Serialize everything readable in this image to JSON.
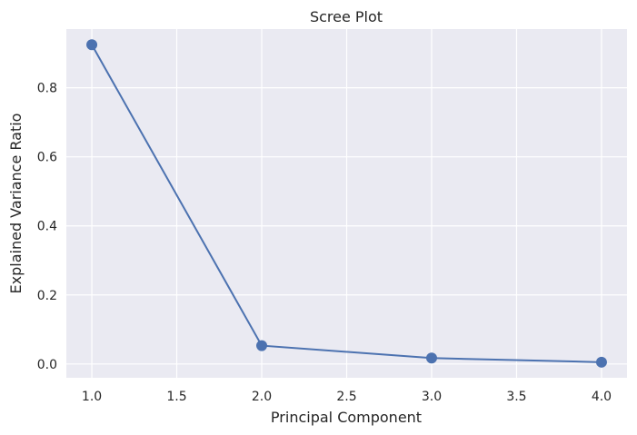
{
  "chart_data": {
    "type": "line",
    "title": "Scree Plot",
    "xlabel": "Principal Component",
    "ylabel": "Explained Variance Ratio",
    "x": [
      1.0,
      2.0,
      3.0,
      4.0
    ],
    "series": [
      {
        "values": [
          0.9246,
          0.0531,
          0.0171,
          0.0052
        ]
      }
    ],
    "xlim": [
      0.85,
      4.15
    ],
    "ylim": [
      -0.04,
      0.97
    ],
    "xticks": [
      "1.0",
      "1.5",
      "2.0",
      "2.5",
      "3.0",
      "3.5",
      "4.0"
    ],
    "yticks": [
      "0.0",
      "0.2",
      "0.4",
      "0.6",
      "0.8"
    ],
    "grid": true,
    "colors": {
      "background": "#eaeaf2",
      "grid": "#ffffff",
      "line": "#4c72b0"
    },
    "marker": "circle"
  }
}
